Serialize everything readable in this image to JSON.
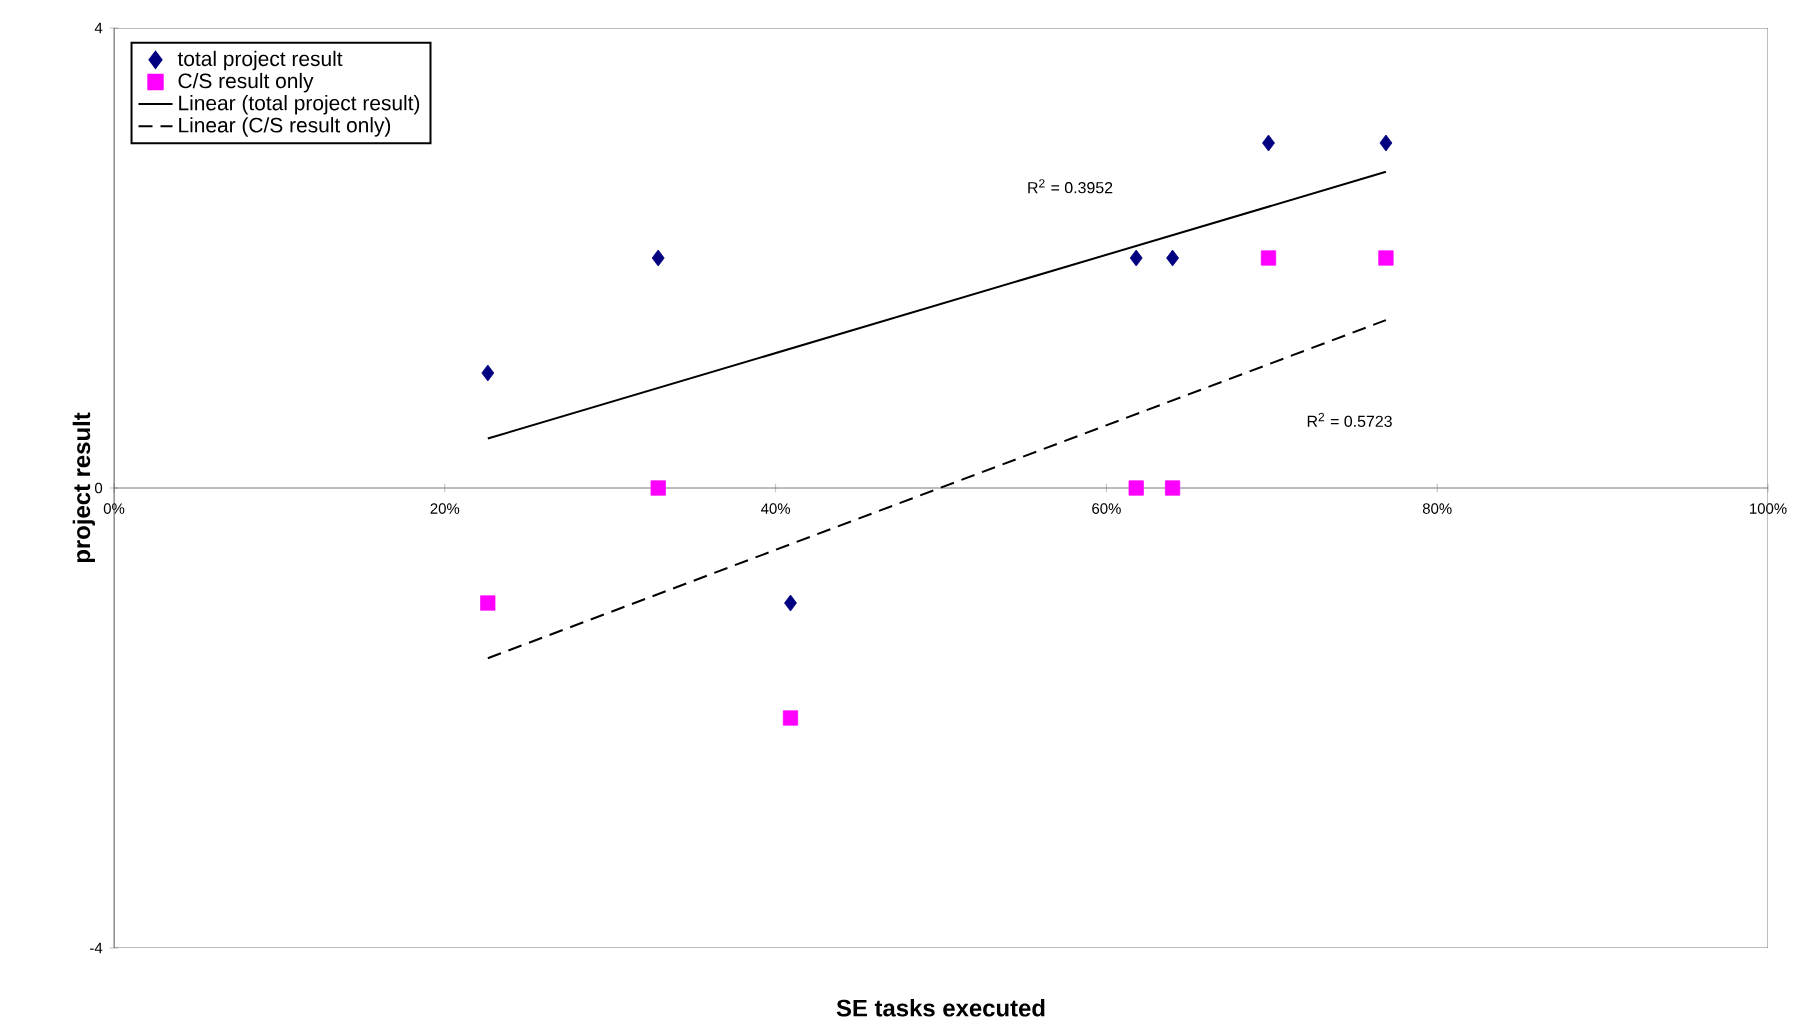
{
  "chart_data": {
    "type": "scatter",
    "xlabel": "SE tasks executed",
    "ylabel": "project result",
    "xlim": [
      0,
      100
    ],
    "ylim": [
      -4,
      4
    ],
    "xticks": [
      {
        "value": 0,
        "label": "0%"
      },
      {
        "value": 20,
        "label": "20%"
      },
      {
        "value": 40,
        "label": "40%"
      },
      {
        "value": 60,
        "label": "60%"
      },
      {
        "value": 80,
        "label": "80%"
      },
      {
        "value": 100,
        "label": "100%"
      }
    ],
    "yticks": [
      -4,
      0,
      4
    ],
    "grid": false,
    "legend": "top left",
    "series": [
      {
        "name": "total project result",
        "type": "scatter",
        "marker": "diamond",
        "color": "#000080",
        "x": [
          22.6,
          32.9,
          40.9,
          61.8,
          64.0,
          69.8,
          76.9
        ],
        "values": [
          1,
          2,
          -1,
          2,
          2,
          3,
          3
        ]
      },
      {
        "name": "C/S result only",
        "type": "scatter",
        "marker": "square",
        "color": "#ff00ff",
        "x": [
          22.6,
          32.9,
          40.9,
          61.8,
          64.0,
          69.8,
          76.9
        ],
        "values": [
          -1,
          0,
          -2,
          0,
          0,
          2,
          2
        ]
      },
      {
        "name": "Linear (total project result)",
        "type": "line",
        "marker": "none",
        "line_style": "solid",
        "color": "#000000",
        "x": [
          22.6,
          76.9
        ],
        "values": [
          0.43,
          2.75
        ]
      },
      {
        "name": "Linear (C/S result only)",
        "type": "line",
        "marker": "none",
        "line_style": "dashed",
        "color": "#000000",
        "x": [
          22.6,
          76.9
        ],
        "values": [
          -1.48,
          1.46
        ]
      }
    ],
    "annotations": [
      "R$^{2}$ = 0.3952",
      "R$^{2}$ = 0.5723"
    ]
  }
}
